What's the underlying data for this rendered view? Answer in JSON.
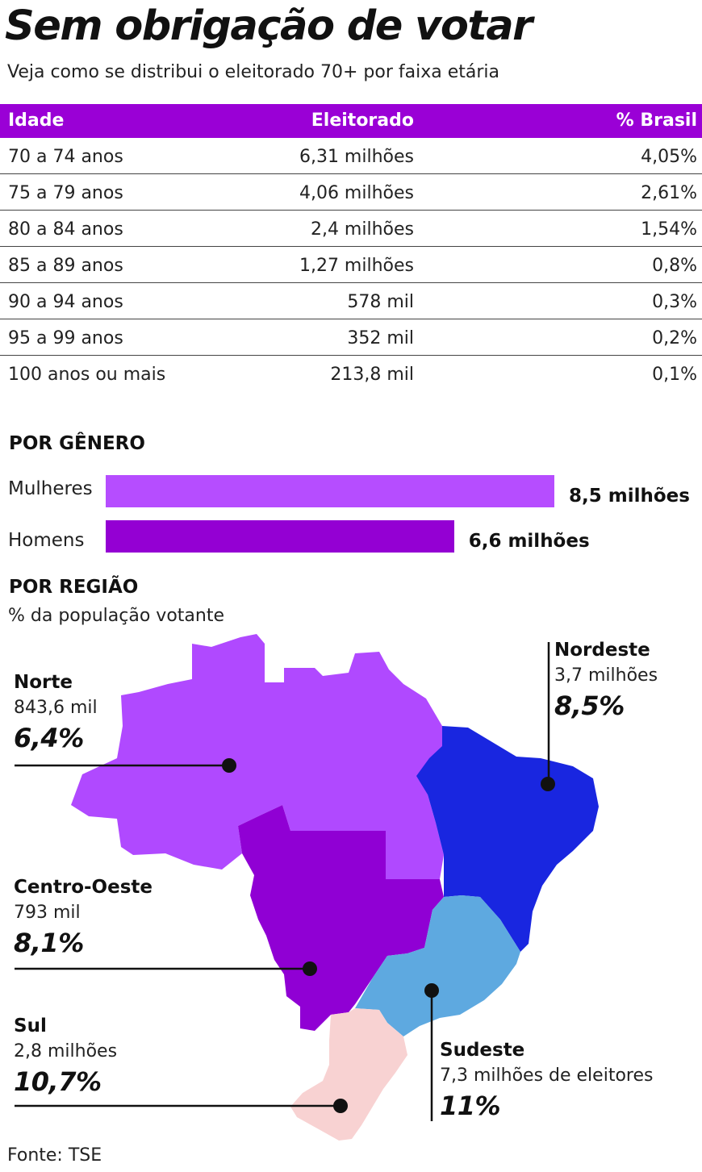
{
  "title": "Sem obrigação de votar",
  "subtitle": "Veja como se distribui o eleitorado 70+ por faixa etária",
  "colors": {
    "header": "#9a00d6",
    "mulheres": "#b64dff",
    "homens": "#9400d3",
    "norte": "#b049ff",
    "nordeste": "#1926e0",
    "centro_oeste": "#9000d4",
    "sudeste": "#5ea9e0",
    "sul": "#f8d2d2"
  },
  "chart_data": [
    {
      "type": "table",
      "columns": [
        "Idade",
        "Eleitorado",
        "% Brasil"
      ],
      "rows": [
        [
          "70 a 74 anos",
          "6,31 milhões",
          "4,05%"
        ],
        [
          "75 a 79 anos",
          "4,06 milhões",
          "2,61%"
        ],
        [
          "80 a 84 anos",
          "2,4 milhões",
          "1,54%"
        ],
        [
          "85 a 89 anos",
          "1,27 milhões",
          "0,8%"
        ],
        [
          "90 a 94 anos",
          "578 mil",
          "0,3%"
        ],
        [
          "95 a 99 anos",
          "352 mil",
          "0,2%"
        ],
        [
          "100 anos ou mais",
          "213,8 mil",
          "0,1%"
        ]
      ]
    },
    {
      "type": "bar",
      "orientation": "horizontal",
      "title": "POR GÊNERO",
      "categories": [
        "Mulheres",
        "Homens"
      ],
      "values": [
        8.5,
        6.6
      ],
      "value_labels": [
        "8,5 milhões",
        "6,6 milhões"
      ],
      "xlim": [
        0,
        8.5
      ]
    },
    {
      "type": "map",
      "title": "POR REGIÃO",
      "subtitle": "% da população votante",
      "regions": [
        {
          "name": "Norte",
          "count": "843,6 mil",
          "pct_label": "6,4%",
          "pct": 6.4
        },
        {
          "name": "Nordeste",
          "count": "3,7 milhões",
          "pct_label": "8,5%",
          "pct": 8.5
        },
        {
          "name": "Centro-Oeste",
          "count": "793 mil",
          "pct_label": "8,1%",
          "pct": 8.1
        },
        {
          "name": "Sudeste",
          "count": "7,3 milhões de eleitores",
          "pct_label": "11%",
          "pct": 11
        },
        {
          "name": "Sul",
          "count": "2,8 milhões",
          "pct_label": "10,7%",
          "pct": 10.7
        }
      ]
    }
  ],
  "source": "Fonte: TSE"
}
